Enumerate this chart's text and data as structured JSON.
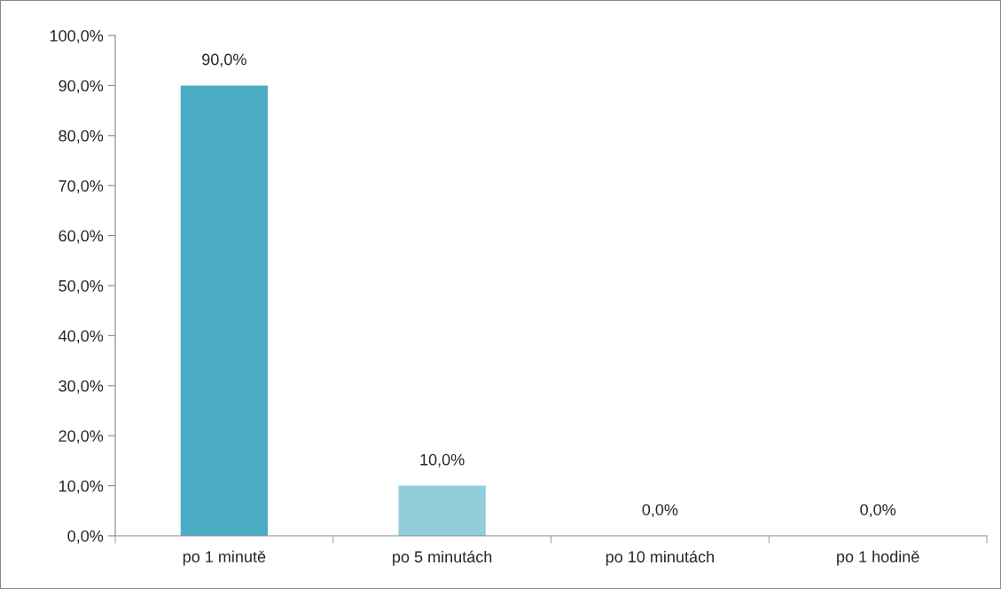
{
  "chart_data": {
    "type": "bar",
    "categories": [
      "po 1 minutě",
      "po 5 minutách",
      "po 10 minutách",
      "po 1 hodině"
    ],
    "values": [
      90.0,
      10.0,
      0.0,
      0.0
    ],
    "colors": [
      "#4bacc6",
      "#92cddc",
      "#4bacc6",
      "#4bacc6"
    ],
    "value_labels": [
      "90,0%",
      "10,0%",
      "0,0%",
      "0,0%"
    ],
    "ylim": [
      0,
      100
    ],
    "yticks": [
      {
        "value": 0,
        "label": "0,0%"
      },
      {
        "value": 10,
        "label": "10,0%"
      },
      {
        "value": 20,
        "label": "20,0%"
      },
      {
        "value": 30,
        "label": "30,0%"
      },
      {
        "value": 40,
        "label": "40,0%"
      },
      {
        "value": 50,
        "label": "50,0%"
      },
      {
        "value": 60,
        "label": "60,0%"
      },
      {
        "value": 70,
        "label": "70,0%"
      },
      {
        "value": 80,
        "label": "80,0%"
      },
      {
        "value": 90,
        "label": "90,0%"
      },
      {
        "value": 100,
        "label": "100,0%"
      }
    ],
    "grid": false
  }
}
